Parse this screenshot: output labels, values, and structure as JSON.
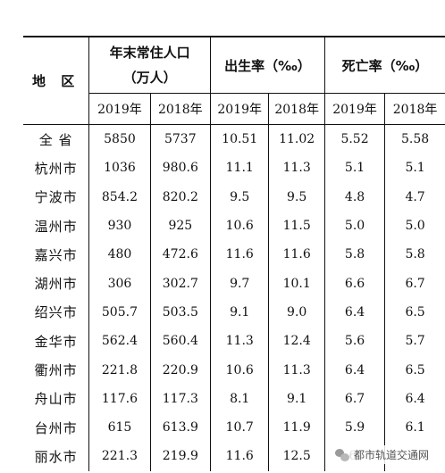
{
  "header": {
    "region": "地  区",
    "population": "年末常住人口",
    "population_unit": "（万人）",
    "birth_rate": "出生率（‰）",
    "death_rate": "死亡率（‰）",
    "years": [
      "2019年",
      "2018年",
      "2019年",
      "2018年",
      "2019年",
      "2018年"
    ]
  },
  "rows": [
    {
      "name": "全  省",
      "pop2019": "5850",
      "pop2018": "5737",
      "birth2019": "10.51",
      "birth2018": "11.02",
      "death2019": "5.52",
      "death2018": "5.58"
    },
    {
      "name": "杭州市",
      "pop2019": "1036",
      "pop2018": "980.6",
      "birth2019": "11.1",
      "birth2018": "11.3",
      "death2019": "5.1",
      "death2018": "5.1"
    },
    {
      "name": "宁波市",
      "pop2019": "854.2",
      "pop2018": "820.2",
      "birth2019": "9.5",
      "birth2018": "9.5",
      "death2019": "4.8",
      "death2018": "4.7"
    },
    {
      "name": "温州市",
      "pop2019": "930",
      "pop2018": "925",
      "birth2019": "10.6",
      "birth2018": "11.5",
      "death2019": "5.0",
      "death2018": "5.0"
    },
    {
      "name": "嘉兴市",
      "pop2019": "480",
      "pop2018": "472.6",
      "birth2019": "11.6",
      "birth2018": "11.6",
      "death2019": "5.8",
      "death2018": "5.8"
    },
    {
      "name": "湖州市",
      "pop2019": "306",
      "pop2018": "302.7",
      "birth2019": "9.7",
      "birth2018": "10.1",
      "death2019": "6.6",
      "death2018": "6.7"
    },
    {
      "name": "绍兴市",
      "pop2019": "505.7",
      "pop2018": "503.5",
      "birth2019": "9.1",
      "birth2018": "9.0",
      "death2019": "6.4",
      "death2018": "6.5"
    },
    {
      "name": "金华市",
      "pop2019": "562.4",
      "pop2018": "560.4",
      "birth2019": "11.3",
      "birth2018": "12.4",
      "death2019": "5.6",
      "death2018": "5.7"
    },
    {
      "name": "衢州市",
      "pop2019": "221.8",
      "pop2018": "220.9",
      "birth2019": "10.6",
      "birth2018": "11.3",
      "death2019": "6.4",
      "death2018": "6.5"
    },
    {
      "name": "舟山市",
      "pop2019": "117.6",
      "pop2018": "117.3",
      "birth2019": "8.1",
      "birth2018": "9.1",
      "death2019": "6.7",
      "death2018": "6.4"
    },
    {
      "name": "台州市",
      "pop2019": "615",
      "pop2018": "613.9",
      "birth2019": "10.7",
      "birth2018": "11.9",
      "death2019": "5.9",
      "death2018": "6.1"
    },
    {
      "name": "丽水市",
      "pop2019": "221.3",
      "pop2018": "219.9",
      "birth2019": "11.6",
      "birth2018": "12.5",
      "death2019": "6.",
      "death2018": ""
    }
  ],
  "watermark": {
    "text": "都市轨道交通网",
    "icon": "wechat-logo-icon"
  }
}
